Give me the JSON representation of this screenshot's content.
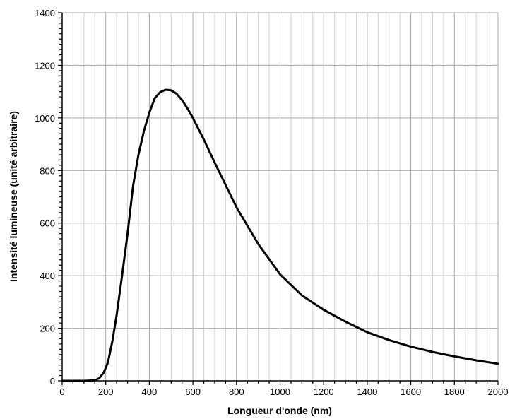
{
  "chart_data": {
    "type": "line",
    "title": "",
    "xlabel": "Longueur d'onde (nm)",
    "ylabel": "Intensité lumineuse (unité arbitraire)",
    "xlim": [
      0,
      2000
    ],
    "ylim": [
      0,
      1400
    ],
    "x_ticks": [
      "0",
      "200",
      "400",
      "600",
      "800",
      "1000",
      "1200",
      "1400",
      "1600",
      "1800",
      "2000"
    ],
    "y_ticks": [
      "0",
      "200",
      "400",
      "600",
      "800",
      "1000",
      "1200",
      "1400"
    ],
    "grid": true,
    "line_color": "#000000",
    "series": [
      {
        "x": [
          0,
          50,
          100,
          150,
          170,
          190,
          210,
          230,
          250,
          275,
          300,
          325,
          350,
          375,
          400,
          425,
          450,
          475,
          500,
          525,
          550,
          575,
          600,
          650,
          700,
          750,
          800,
          900,
          1000,
          1100,
          1200,
          1300,
          1400,
          1500,
          1600,
          1700,
          1800,
          1900,
          2000
        ],
        "y": [
          0,
          0,
          0,
          2,
          10,
          30,
          70,
          150,
          250,
          400,
          560,
          740,
          860,
          950,
          1020,
          1075,
          1098,
          1107,
          1105,
          1092,
          1068,
          1036,
          1000,
          918,
          830,
          745,
          660,
          520,
          405,
          325,
          270,
          225,
          185,
          155,
          130,
          110,
          93,
          78,
          65
        ]
      }
    ]
  }
}
